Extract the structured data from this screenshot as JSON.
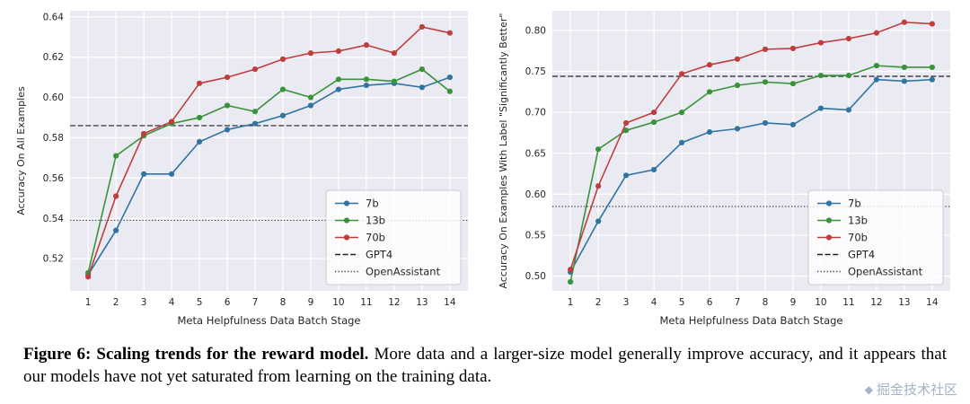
{
  "figure": {
    "caption_bold": "Figure 6: Scaling trends for the reward model.",
    "caption_rest": " More data and a larger-size model generally improve accuracy, and it appears that our models have not yet saturated from learning on the training data.",
    "watermark": "掘金技术社区"
  },
  "colors": {
    "blue_7b": "#3274a1",
    "green_13b": "#3a923a",
    "red_70b": "#c03d3e",
    "gpt4_line": "#222222",
    "openassistant_line": "#444444",
    "plot_background": "#eaeaf2",
    "gridline": "#ffffff"
  },
  "chart_data": [
    {
      "type": "line",
      "title": "",
      "xlabel": "Meta Helpfulness Data Batch Stage",
      "ylabel": "Accuracy On All Examples",
      "x": [
        1,
        2,
        3,
        4,
        5,
        6,
        7,
        8,
        9,
        10,
        11,
        12,
        13,
        14
      ],
      "xlim": [
        0.35,
        14.65
      ],
      "ylim": [
        0.504,
        0.643
      ],
      "yticks": [
        0.52,
        0.54,
        0.56,
        0.58,
        0.6,
        0.62,
        0.64
      ],
      "ytick_labels": [
        "0.52",
        "0.54",
        "0.56",
        "0.58",
        "0.60",
        "0.62",
        "0.64"
      ],
      "grid": true,
      "plot_bg": "#eaeaf2",
      "legend_position": "lower right",
      "series": [
        {
          "name": "7b",
          "color": "#3274a1",
          "values": [
            0.512,
            0.534,
            0.562,
            0.562,
            0.578,
            0.584,
            0.587,
            0.591,
            0.596,
            0.604,
            0.606,
            0.607,
            0.605,
            0.61
          ]
        },
        {
          "name": "13b",
          "color": "#3a923a",
          "values": [
            0.513,
            0.571,
            0.581,
            0.587,
            0.59,
            0.596,
            0.593,
            0.604,
            0.6,
            0.609,
            0.609,
            0.608,
            0.614,
            0.603
          ]
        },
        {
          "name": "70b",
          "color": "#c03d3e",
          "values": [
            0.511,
            0.551,
            0.582,
            0.588,
            0.607,
            0.61,
            0.614,
            0.619,
            0.622,
            0.623,
            0.626,
            0.622,
            0.635,
            0.632
          ]
        }
      ],
      "hlines": [
        {
          "name": "GPT4",
          "value": 0.586,
          "style": "dashed",
          "color": "#222222"
        },
        {
          "name": "OpenAssistant",
          "value": 0.539,
          "style": "dotted",
          "color": "#444444"
        }
      ]
    },
    {
      "type": "line",
      "title": "",
      "xlabel": "Meta Helpfulness Data Batch Stage",
      "ylabel": "Accuracy On Examples With Label \"Significantly Better\"",
      "x": [
        1,
        2,
        3,
        4,
        5,
        6,
        7,
        8,
        9,
        10,
        11,
        12,
        13,
        14
      ],
      "xlim": [
        0.35,
        14.65
      ],
      "ylim": [
        0.482,
        0.824
      ],
      "yticks": [
        0.5,
        0.55,
        0.6,
        0.65,
        0.7,
        0.75,
        0.8
      ],
      "ytick_labels": [
        "0.50",
        "0.55",
        "0.60",
        "0.65",
        "0.70",
        "0.75",
        "0.80"
      ],
      "grid": true,
      "plot_bg": "#eaeaf2",
      "legend_position": "lower right",
      "series": [
        {
          "name": "7b",
          "color": "#3274a1",
          "values": [
            0.505,
            0.567,
            0.623,
            0.63,
            0.663,
            0.676,
            0.68,
            0.687,
            0.685,
            0.705,
            0.703,
            0.74,
            0.738,
            0.74
          ]
        },
        {
          "name": "13b",
          "color": "#3a923a",
          "values": [
            0.493,
            0.655,
            0.678,
            0.688,
            0.7,
            0.725,
            0.733,
            0.737,
            0.735,
            0.745,
            0.745,
            0.757,
            0.755,
            0.755
          ]
        },
        {
          "name": "70b",
          "color": "#c03d3e",
          "values": [
            0.508,
            0.61,
            0.687,
            0.7,
            0.747,
            0.758,
            0.765,
            0.777,
            0.778,
            0.785,
            0.79,
            0.797,
            0.81,
            0.808
          ]
        }
      ],
      "hlines": [
        {
          "name": "GPT4",
          "value": 0.744,
          "style": "dashed",
          "color": "#222222"
        },
        {
          "name": "OpenAssistant",
          "value": 0.585,
          "style": "dotted",
          "color": "#444444"
        }
      ]
    }
  ]
}
